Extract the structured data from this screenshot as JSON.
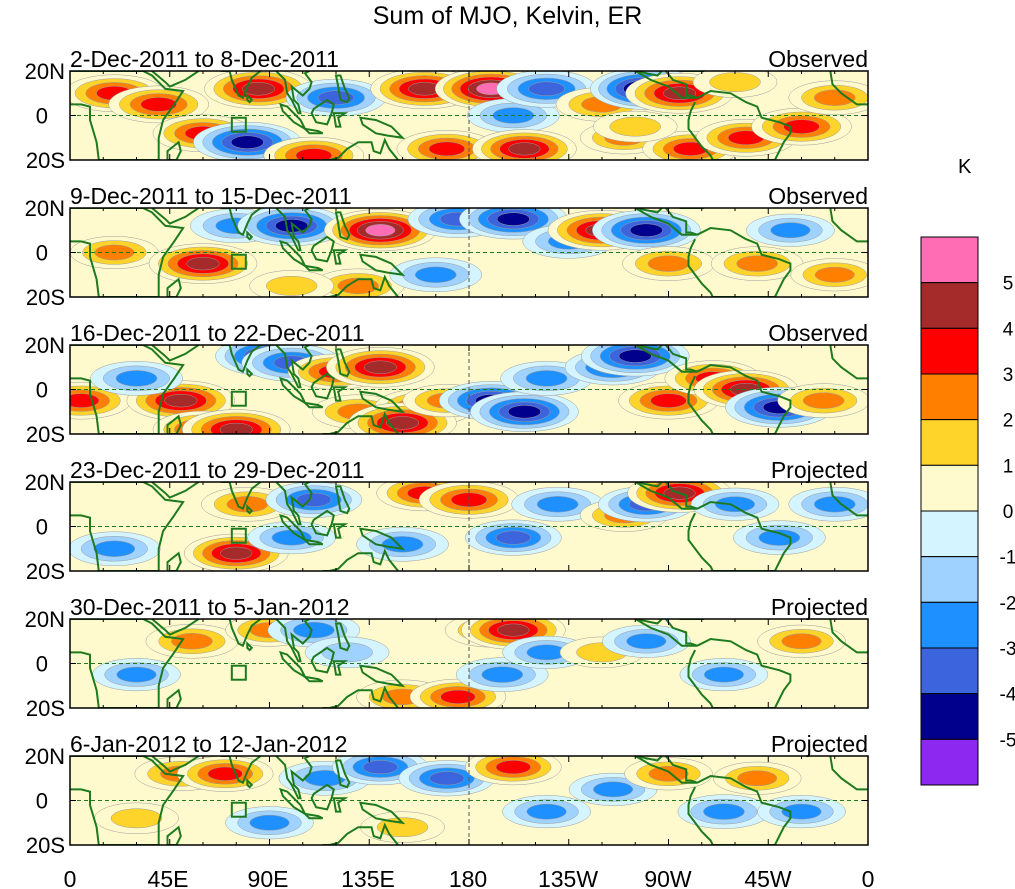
{
  "title": "Sum of MJO, Kelvin, ER",
  "colorbar": {
    "unit": "K",
    "labels": [
      "5",
      "4",
      "3",
      "2",
      "1",
      "0",
      "-1",
      "-2",
      "-3",
      "-4",
      "-5"
    ],
    "colors": [
      "#ff6eb4",
      "#a52a2a",
      "#ff0000",
      "#ff7f00",
      "#ffd42a",
      "#fffacd",
      "#d4f4ff",
      "#a0d2ff",
      "#1e90ff",
      "#3c64dc",
      "#00008c",
      "#8c28f0"
    ]
  },
  "lat_labels": [
    "20N",
    "0",
    "20S"
  ],
  "lon_labels": [
    "0",
    "45E",
    "90E",
    "135E",
    "180",
    "135W",
    "90W",
    "45W",
    "0"
  ],
  "panels": [
    {
      "date": "2-Dec-2011 to 8-Dec-2011",
      "status": "Observed"
    },
    {
      "date": "9-Dec-2011 to 15-Dec-2011",
      "status": "Observed"
    },
    {
      "date": "16-Dec-2011 to 22-Dec-2011",
      "status": "Observed"
    },
    {
      "date": "23-Dec-2011 to 29-Dec-2011",
      "status": "Projected"
    },
    {
      "date": "30-Dec-2011 to 5-Jan-2012",
      "status": "Projected"
    },
    {
      "date": "6-Jan-2012 to 12-Jan-2012",
      "status": "Projected"
    }
  ],
  "anomalies": [
    [
      [
        20,
        10,
        3
      ],
      [
        40,
        5,
        3
      ],
      [
        60,
        -8,
        3
      ],
      [
        85,
        12,
        4
      ],
      [
        80,
        -12,
        -4
      ],
      [
        120,
        8,
        -3
      ],
      [
        110,
        -18,
        3
      ],
      [
        160,
        12,
        4
      ],
      [
        170,
        -15,
        3
      ],
      [
        190,
        12,
        4.5
      ],
      [
        200,
        0,
        -2
      ],
      [
        215,
        12,
        -3
      ],
      [
        205,
        -15,
        3.5
      ],
      [
        240,
        5,
        2
      ],
      [
        250,
        -10,
        1.5
      ],
      [
        260,
        12,
        -4.5
      ],
      [
        275,
        10,
        4
      ],
      [
        280,
        -15,
        2.5
      ],
      [
        305,
        -10,
        3
      ],
      [
        330,
        -5,
        3
      ],
      [
        345,
        8,
        2
      ],
      [
        300,
        15,
        1
      ],
      [
        255,
        -5,
        1
      ]
    ],
    [
      [
        20,
        0,
        1.5
      ],
      [
        60,
        -5,
        4
      ],
      [
        75,
        12,
        -2
      ],
      [
        100,
        12,
        -4
      ],
      [
        140,
        10,
        4.5
      ],
      [
        130,
        -15,
        2
      ],
      [
        165,
        -10,
        -2
      ],
      [
        175,
        15,
        -3
      ],
      [
        200,
        15,
        -4
      ],
      [
        225,
        5,
        -2
      ],
      [
        240,
        10,
        4
      ],
      [
        260,
        10,
        -4
      ],
      [
        270,
        -5,
        2
      ],
      [
        310,
        -5,
        2
      ],
      [
        325,
        10,
        -1.5
      ],
      [
        345,
        -10,
        1.5
      ],
      [
        100,
        -15,
        1
      ]
    ],
    [
      [
        5,
        -5,
        3
      ],
      [
        50,
        -5,
        4
      ],
      [
        60,
        -18,
        3
      ],
      [
        75,
        -18,
        4
      ],
      [
        90,
        15,
        -4
      ],
      [
        100,
        12,
        -3
      ],
      [
        120,
        8,
        2.5
      ],
      [
        140,
        10,
        4
      ],
      [
        130,
        -10,
        2
      ],
      [
        160,
        -8,
        3
      ],
      [
        150,
        -15,
        4
      ],
      [
        170,
        -5,
        1.5
      ],
      [
        190,
        -5,
        -3.5
      ],
      [
        205,
        -10,
        -4
      ],
      [
        215,
        5,
        -2
      ],
      [
        245,
        10,
        -2.5
      ],
      [
        255,
        15,
        -4
      ],
      [
        270,
        -5,
        3
      ],
      [
        290,
        5,
        2.5
      ],
      [
        305,
        0,
        3.5
      ],
      [
        320,
        -8,
        -4
      ],
      [
        340,
        -5,
        2
      ],
      [
        30,
        5,
        -2
      ]
    ],
    [
      [
        75,
        -12,
        3.5
      ],
      [
        80,
        10,
        2
      ],
      [
        110,
        12,
        -2.5
      ],
      [
        160,
        15,
        2.5
      ],
      [
        180,
        12,
        3
      ],
      [
        150,
        -8,
        -2
      ],
      [
        200,
        -5,
        -2.5
      ],
      [
        220,
        10,
        -2
      ],
      [
        250,
        5,
        1.5
      ],
      [
        260,
        10,
        -2.5
      ],
      [
        275,
        15,
        3.5
      ],
      [
        300,
        10,
        -1.5
      ],
      [
        320,
        -5,
        -2
      ],
      [
        345,
        10,
        -2
      ],
      [
        20,
        -10,
        -2
      ],
      [
        100,
        -5,
        -1.5
      ]
    ],
    [
      [
        55,
        10,
        2
      ],
      [
        90,
        15,
        1.5
      ],
      [
        150,
        -15,
        2
      ],
      [
        175,
        -15,
        2.5
      ],
      [
        190,
        15,
        2
      ],
      [
        200,
        15,
        3.5
      ],
      [
        195,
        -5,
        -2
      ],
      [
        215,
        5,
        -1.5
      ],
      [
        240,
        5,
        1
      ],
      [
        260,
        10,
        -1.5
      ],
      [
        295,
        -5,
        -1.5
      ],
      [
        330,
        10,
        1.5
      ],
      [
        30,
        -5,
        -1.5
      ],
      [
        110,
        15,
        -2
      ],
      [
        125,
        5,
        -1
      ]
    ],
    [
      [
        50,
        12,
        2
      ],
      [
        70,
        12,
        2.5
      ],
      [
        115,
        10,
        -2
      ],
      [
        140,
        15,
        -2.5
      ],
      [
        170,
        10,
        -2.5
      ],
      [
        200,
        15,
        2.5
      ],
      [
        215,
        -5,
        -1.5
      ],
      [
        245,
        5,
        -1.5
      ],
      [
        270,
        12,
        1.5
      ],
      [
        295,
        -5,
        -2
      ],
      [
        310,
        10,
        1.5
      ],
      [
        330,
        -5,
        -1.5
      ],
      [
        30,
        -8,
        1
      ],
      [
        90,
        -10,
        -1.5
      ],
      [
        150,
        -12,
        1
      ]
    ]
  ]
}
